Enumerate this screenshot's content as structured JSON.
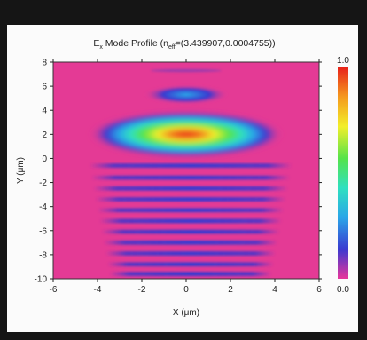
{
  "chart_data": {
    "type": "heatmap",
    "title": "E  Mode Profile (n  =(3.439907,0.0004755))",
    "title_parts": {
      "prefix": "E",
      "sub_e": "x",
      "mid": " Mode Profile (n",
      "sub_n": "eff",
      "suffix": "=(3.439907,0.0004755))"
    },
    "xlabel": "X (μm)",
    "ylabel": "Y (μm)",
    "xlim": [
      -6,
      6
    ],
    "ylim": [
      -10,
      8
    ],
    "xticks": [
      "-6",
      "-4",
      "-2",
      "0",
      "2",
      "4",
      "6"
    ],
    "yticks": [
      "8",
      "6",
      "4",
      "2",
      "0",
      "-2",
      "-4",
      "-6",
      "-8",
      "-10"
    ],
    "colorbar": {
      "min": 0.0,
      "max": 1.0,
      "min_label": "0.0",
      "max_label": "1.0"
    },
    "colors": {
      "background": "#e43a95",
      "colormap": [
        "#e8369b",
        "#3a3ad0",
        "#2aa6e8",
        "#2fe0c0",
        "#56e34a",
        "#f2ef2a",
        "#f59a1e",
        "#e8231a"
      ]
    },
    "features": [
      {
        "kind": "main-lobe",
        "x": 0,
        "y": 2,
        "rx": 3.8,
        "ry": 1.2,
        "peak": 1.0
      },
      {
        "kind": "upper-lobe",
        "x": 0,
        "y": 5.3,
        "rx": 1.6,
        "ry": 0.45,
        "peak": 0.35
      },
      {
        "kind": "faint-stripe",
        "x": 0,
        "y": 7.3,
        "rx": 1.6,
        "ry": 0.12,
        "peak": 0.12
      },
      {
        "kind": "substrate-stripes",
        "x": 0.2,
        "y_values": [
          -0.6,
          -1.6,
          -2.5,
          -3.4,
          -4.3,
          -5.2,
          -6.1,
          -7.0,
          -7.9,
          -8.8,
          -9.6
        ],
        "rx": 4.6,
        "ry": 0.18,
        "peak": 0.22
      }
    ]
  }
}
